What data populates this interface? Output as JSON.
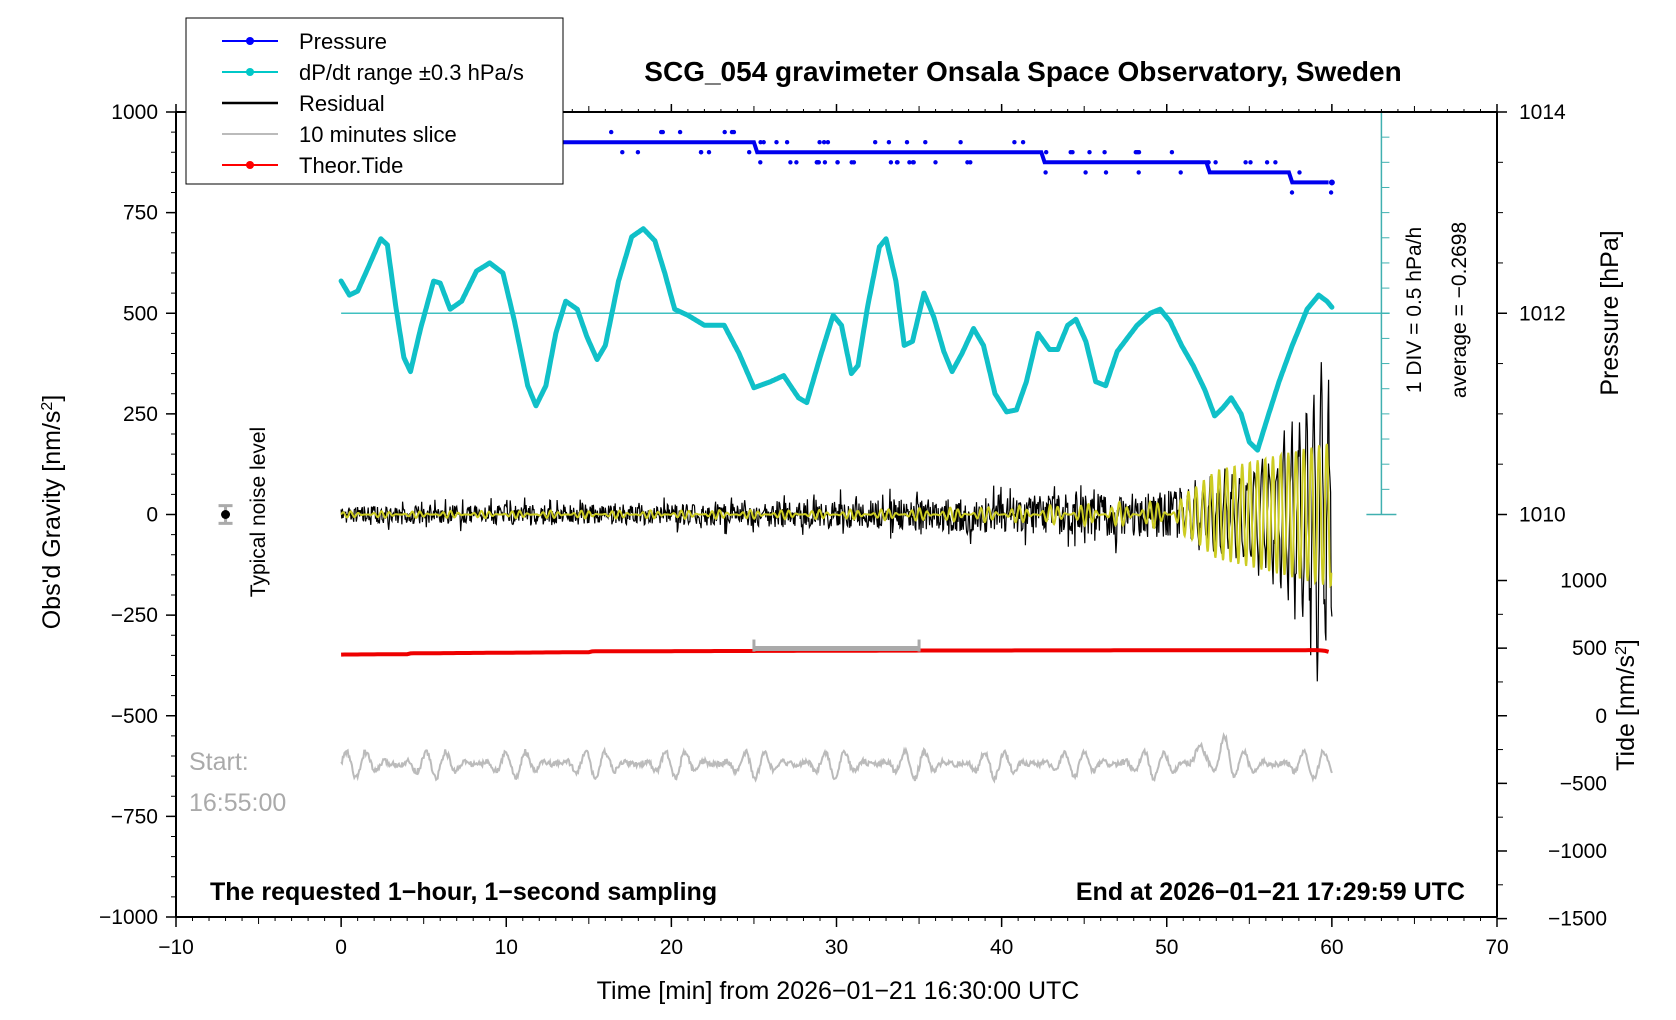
{
  "chart_data": {
    "type": "line",
    "title": "SCG_054 gravimeter Onsala Space Observatory, Sweden",
    "xlabel": "Time [min] from 2026−01−21 16:30:00 UTC",
    "ylabel_left": "Obs'd Gravity [nm/s",
    "ylabel_left_sup": "2",
    "ylabel_left_end": "]",
    "ylabel_right_pressure": "Pressure [hPa]",
    "ylabel_right_tide": "Tide [nm/s",
    "ylabel_right_tide_sup": "2",
    "ylabel_right_tide_end": "]",
    "xlim": [
      -10,
      70
    ],
    "ylim": [
      -1000,
      1000
    ],
    "x_ticks": [
      -10,
      0,
      10,
      20,
      30,
      40,
      50,
      60,
      70
    ],
    "x_tick_labels": [
      "−10",
      "0",
      "10",
      "20",
      "30",
      "40",
      "50",
      "60",
      "70"
    ],
    "y_ticks": [
      1000,
      750,
      500,
      250,
      0,
      -250,
      -500,
      -750,
      -1000
    ],
    "y_tick_labels": [
      "1000",
      "750",
      "500",
      "250",
      "0",
      "−250",
      "−500",
      "−750",
      "−1000"
    ],
    "pressure_ticks": [
      1014,
      1012,
      1010
    ],
    "pressure_tick_labels": [
      "1014",
      "1012",
      "1010"
    ],
    "tide_ticks": [
      1000,
      500,
      0,
      -500,
      -1000,
      -1500
    ],
    "tide_tick_labels": [
      "1000",
      "500",
      "0",
      "−500",
      "−1000",
      "−1500"
    ],
    "legend": [
      {
        "label": "Pressure",
        "color": "#0000ff",
        "marker": true
      },
      {
        "label": "dP/dt range ±0.3 hPa/s",
        "color": "#00c8c8",
        "marker": true
      },
      {
        "label": "Residual",
        "color": "#000000",
        "marker": false
      },
      {
        "label": "10 minutes slice",
        "color": "#bbbbbb",
        "marker": false
      },
      {
        "label": "Theor.Tide",
        "color": "#ff0000",
        "marker": true
      }
    ],
    "legend_position": "top-left",
    "dpdt_scale_label": "1 DIV = 0.5 hPa/h",
    "average_label": "average = −0.2698",
    "noise_label": "Typical noise level",
    "start_label": "Start:",
    "start_time": "16:55:00",
    "bottom_left_note": "The requested 1−hour, 1−second sampling",
    "bottom_right_note": "End at 2026−01−21 17:29:59 UTC",
    "slice_range_min": [
      25,
      35
    ],
    "pressure_series": {
      "name": "Pressure",
      "unit": "hPa",
      "points": [
        [
          0,
          1013.7
        ],
        [
          10,
          1013.7
        ],
        [
          20,
          1013.7
        ],
        [
          30,
          1013.6
        ],
        [
          40,
          1013.6
        ],
        [
          45,
          1013.5
        ],
        [
          50,
          1013.5
        ],
        [
          55,
          1013.4
        ],
        [
          60,
          1013.3
        ]
      ]
    },
    "dpdt_series": {
      "name": "dP/dt",
      "baseline_gravity": 500,
      "points": [
        [
          0,
          580
        ],
        [
          0.5,
          545
        ],
        [
          1.0,
          555
        ],
        [
          1.6,
          610
        ],
        [
          2.4,
          685
        ],
        [
          2.8,
          670
        ],
        [
          3.3,
          520
        ],
        [
          3.8,
          390
        ],
        [
          4.2,
          355
        ],
        [
          4.8,
          460
        ],
        [
          5.6,
          580
        ],
        [
          6.0,
          575
        ],
        [
          6.6,
          510
        ],
        [
          7.3,
          530
        ],
        [
          8.2,
          605
        ],
        [
          9.0,
          625
        ],
        [
          9.8,
          600
        ],
        [
          10.5,
          480
        ],
        [
          11.3,
          320
        ],
        [
          11.8,
          270
        ],
        [
          12.4,
          320
        ],
        [
          13.0,
          450
        ],
        [
          13.6,
          530
        ],
        [
          14.3,
          510
        ],
        [
          14.9,
          440
        ],
        [
          15.5,
          385
        ],
        [
          16.0,
          420
        ],
        [
          16.8,
          580
        ],
        [
          17.6,
          690
        ],
        [
          18.3,
          710
        ],
        [
          19.0,
          680
        ],
        [
          19.6,
          600
        ],
        [
          20.2,
          510
        ],
        [
          21.0,
          495
        ],
        [
          22.0,
          470
        ],
        [
          23.2,
          470
        ],
        [
          24.1,
          400
        ],
        [
          25.0,
          315
        ],
        [
          26.0,
          330
        ],
        [
          26.8,
          345
        ],
        [
          27.7,
          290
        ],
        [
          28.2,
          278
        ],
        [
          29.0,
          390
        ],
        [
          29.8,
          495
        ],
        [
          30.3,
          470
        ],
        [
          30.9,
          350
        ],
        [
          31.3,
          370
        ],
        [
          31.9,
          520
        ],
        [
          32.6,
          665
        ],
        [
          33.0,
          685
        ],
        [
          33.6,
          580
        ],
        [
          34.1,
          420
        ],
        [
          34.6,
          430
        ],
        [
          35.3,
          550
        ],
        [
          35.9,
          490
        ],
        [
          36.5,
          405
        ],
        [
          37.0,
          355
        ],
        [
          37.6,
          400
        ],
        [
          38.3,
          462
        ],
        [
          38.9,
          420
        ],
        [
          39.6,
          300
        ],
        [
          40.3,
          255
        ],
        [
          40.9,
          260
        ],
        [
          41.5,
          330
        ],
        [
          42.2,
          450
        ],
        [
          42.9,
          410
        ],
        [
          43.4,
          410
        ],
        [
          44.0,
          470
        ],
        [
          44.5,
          485
        ],
        [
          45.1,
          430
        ],
        [
          45.7,
          330
        ],
        [
          46.3,
          320
        ],
        [
          47.0,
          405
        ],
        [
          48.2,
          470
        ],
        [
          49.0,
          500
        ],
        [
          49.6,
          510
        ],
        [
          50.2,
          480
        ],
        [
          50.9,
          420
        ],
        [
          51.6,
          370
        ],
        [
          52.3,
          310
        ],
        [
          52.9,
          245
        ],
        [
          53.4,
          265
        ],
        [
          53.9,
          290
        ],
        [
          54.5,
          250
        ],
        [
          55.0,
          180
        ],
        [
          55.5,
          160
        ],
        [
          56.1,
          240
        ],
        [
          56.8,
          330
        ],
        [
          57.6,
          420
        ],
        [
          58.5,
          510
        ],
        [
          59.2,
          545
        ],
        [
          59.7,
          530
        ],
        [
          60.0,
          515
        ]
      ]
    },
    "tide_series": {
      "name": "Theor.Tide",
      "unit": "gravity axis",
      "points": [
        [
          0,
          -348
        ],
        [
          4,
          -347
        ],
        [
          4.1,
          -345
        ],
        [
          15,
          -342
        ],
        [
          15.2,
          -340
        ],
        [
          35,
          -338
        ],
        [
          59,
          -337
        ],
        [
          59.5,
          -338
        ],
        [
          60,
          -343
        ]
      ]
    },
    "residual_envelope": {
      "name": "Residual",
      "points": [
        [
          0,
          20
        ],
        [
          10,
          25
        ],
        [
          20,
          25
        ],
        [
          30,
          35
        ],
        [
          40,
          45
        ],
        [
          48,
          55
        ],
        [
          51,
          60
        ],
        [
          54,
          110
        ],
        [
          56,
          150
        ],
        [
          57,
          200
        ],
        [
          58,
          260
        ],
        [
          59,
          350
        ],
        [
          59.7,
          420
        ],
        [
          60,
          300
        ]
      ]
    },
    "filtered_envelope": {
      "name": "Filtered",
      "points": [
        [
          0,
          8
        ],
        [
          30,
          12
        ],
        [
          40,
          20
        ],
        [
          50,
          35
        ],
        [
          51.5,
          60
        ],
        [
          53,
          110
        ],
        [
          56,
          140
        ],
        [
          58,
          160
        ],
        [
          60,
          180
        ]
      ]
    },
    "slice_series": {
      "name": "10 minutes slice",
      "center": -620,
      "amplitude": 35,
      "peaks": [
        [
          52,
          45
        ],
        [
          53.5,
          40
        ]
      ]
    },
    "noise_marker": {
      "x": -7,
      "y": 0,
      "err": 22
    }
  }
}
